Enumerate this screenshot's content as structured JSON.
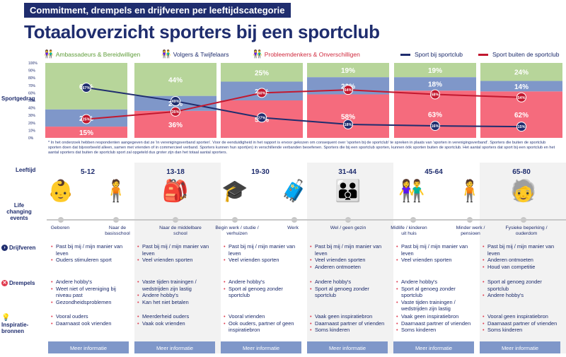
{
  "header": {
    "banner": "Commitment, drempels en drijfveren per leeftijdscategorie",
    "title": "Totaaloverzicht sporters bij een sportclub"
  },
  "legend": {
    "ambassadors": "Ambassadeurs & Bereidwilligen",
    "followers": "Volgers & Twijfelaars",
    "problem": "Probleemdenkers & Onverschilligen",
    "club": "Sport bij sportclub",
    "outside": "Sport buiten de sportclub"
  },
  "colors": {
    "green": "#b7d59a",
    "blue": "#7f97c9",
    "pink": "#f56b7d",
    "navy": "#1f2d6e",
    "red": "#c2182f"
  },
  "row_labels": {
    "sportgedrag": "Sportgedrag",
    "leeftijd": "Leeftijd",
    "life": "Life changing events",
    "drijfveren": "Drijfveren",
    "drempels": "Drempels",
    "inspiratie": "Inspiratie-bronnen"
  },
  "note": "* In het onderzoek hebben respondenten aangegeven dat ze 'in verenigingsverband sporten'. Voor de eenduidigheid in het rapport is ervoor gekozen om consequent over 'sporten bij de sportclub' te spreken in plaats van 'sporten in verenigingsverband'. Sporters die buiten de sportclub sporten doen dat bijvoorbeeld alleen, samen met vrienden of in commercieel verband. Sporters kunnen hun sport(en) in verschillende verbanden beoefenen. Sporters die bij een sportclub sporten, kunnen óók sporten buiten de sportclub. Het aantal sporters dat sport bij een sportclub en het aantal sporters dat buiten de sportclub sport zal opgeteld dus groter zijn dan het totaal aantal sporters.",
  "chart_data": {
    "type": "bar",
    "stacked": true,
    "categories": [
      "5-12",
      "13-18",
      "19-30",
      "31-44",
      "45-64",
      "65-80"
    ],
    "series": [
      {
        "name": "Probleemdenkers & Onverschilligen",
        "values": [
          15,
          36,
          50,
          58,
          63,
          62
        ]
      },
      {
        "name": "Volgers & Twijfelaars",
        "values": [
          23,
          20,
          25,
          23,
          18,
          14
        ]
      },
      {
        "name": "Ambassadeurs & Bereidwilligen",
        "values": [
          62,
          44,
          25,
          19,
          19,
          24
        ]
      }
    ],
    "lines": [
      {
        "name": "Sport bij sportclub",
        "values": [
          67,
          49,
          27,
          18,
          16,
          15
        ]
      },
      {
        "name": "Sport buiten de sportclub",
        "values": [
          25,
          35,
          60,
          64,
          58,
          54
        ]
      }
    ],
    "ylim": [
      0,
      100
    ],
    "yticks": [
      "0%",
      "10%",
      "20%",
      "30%",
      "40%",
      "50%",
      "60%",
      "70%",
      "80%",
      "90%",
      "100%"
    ],
    "title": "Sportgedrag"
  },
  "ages": [
    "5-12",
    "13-18",
    "19-30",
    "31-44",
    "45-64",
    "65-80"
  ],
  "pictos": [
    "👶",
    "🧍",
    "🎒",
    "🎓",
    "🧳",
    "👪",
    "👫",
    "🧍",
    "🧓"
  ],
  "events": [
    "Geboren",
    "Naar de basisschool",
    "Naar de middelbare school",
    "Begin werk / studie / verhuizen",
    "Werk",
    "Wel / geen gezin",
    "Midlife / kinderen uit huis",
    "Minder werk / pensioen",
    "Fysieke beperking / ouderdom"
  ],
  "drijfveren": [
    [
      "Past bij mij / mijn manier van leven",
      "Ouders stimuleren sport"
    ],
    [
      "Past bij mij / mijn manier van leven",
      "Veel vrienden sporten"
    ],
    [
      "Past bij mij / mijn manier van leven",
      "Veel vrienden sporten"
    ],
    [
      "Past bij mij / mijn manier van leven",
      "Veel vrienden sporten",
      "Anderen ontmoeten"
    ],
    [
      "Past bij mij / mijn manier van leven",
      "Veel vrienden sporten"
    ],
    [
      "Past bij mij / mijn manier van leven",
      "Anderen ontmoeten",
      "Houd van competitie"
    ]
  ],
  "drempels": [
    [
      "Andere hobby's",
      "Weet niet of vereniging bij niveau past",
      "Gezondheidsproblemen"
    ],
    [
      "Vaste tijden trainingen / wedstrijden zijn lastig",
      "Andere hobby's",
      "Kan het niet betalen"
    ],
    [
      "Andere hobby's",
      "Sport al genoeg zonder sportclub"
    ],
    [
      "Andere hobby's",
      "Sport al genoeg zonder sportclub"
    ],
    [
      "Andere hobby's",
      "Sport al genoeg zonder sportclub",
      "Vaste tijden trainingen / wedstrijden zijn lastig"
    ],
    [
      "Sport al genoeg zonder sportclub",
      "Andere hobby's"
    ]
  ],
  "inspiratie": [
    [
      "Vooral ouders",
      "Daarnaast ook vrienden"
    ],
    [
      "Meerderheid ouders",
      "Vaak ook vrienden"
    ],
    [
      "Vooral vrienden",
      "Ook ouders, partner of geen inspiratiebron"
    ],
    [
      "Vaak geen inspiratiebron",
      "Daarnaast partner of vrienden",
      "Soms kinderen"
    ],
    [
      "Vaak geen inspiratiebron",
      "Daarnaast partner of vrienden",
      "Soms kinderen"
    ],
    [
      "Vooral geen inspiratiebron",
      "Daarnaast partner of vrienden",
      "Soms kinderen"
    ]
  ],
  "button_label": "Meer informatie"
}
